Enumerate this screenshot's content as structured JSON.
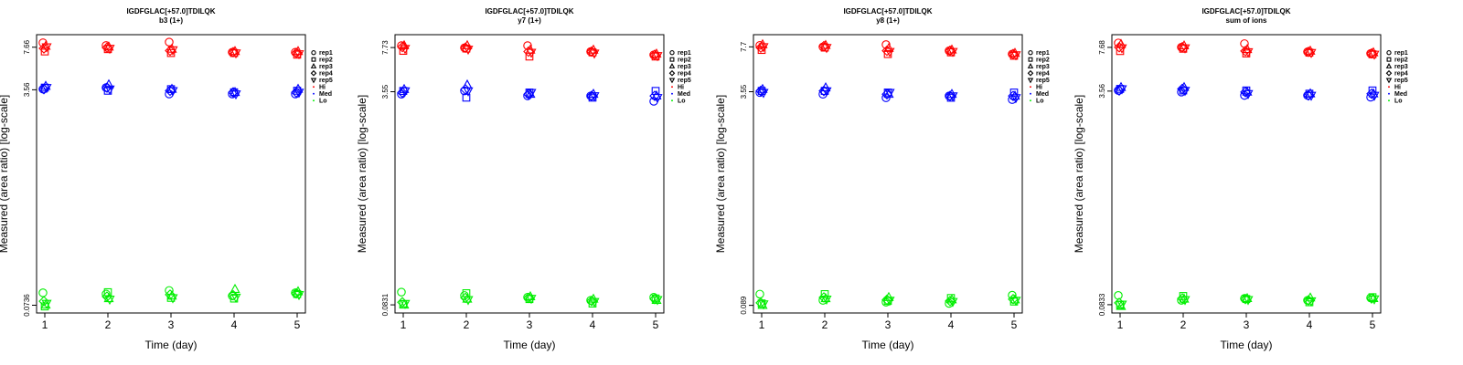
{
  "chart_data": [
    {
      "type": "scatter",
      "title": "IGDFGLAC[+57.0]TDILQK",
      "subtitle": "b3 (1+)",
      "xlabel": "Time (day)",
      "ylabel": "Measured (area ratio) [log-scale]",
      "x_ticks": [
        "1",
        "2",
        "3",
        "4",
        "5"
      ],
      "y_scale": "log",
      "y_ticks": [
        {
          "value": 0.0736,
          "label": "0.0736"
        },
        {
          "value": 3.56,
          "label": "3.56"
        },
        {
          "value": 7.66,
          "label": "7.66"
        }
      ],
      "ylim": [
        0.064,
        9.6
      ],
      "legend": [
        {
          "label": "rep1",
          "marker": "circle"
        },
        {
          "label": "rep2",
          "marker": "square"
        },
        {
          "label": "rep3",
          "marker": "triangle-up"
        },
        {
          "label": "rep4",
          "marker": "diamond"
        },
        {
          "label": "rep5",
          "marker": "triangle-down"
        },
        {
          "label": "Hi",
          "marker": "dot",
          "color": "#ff0000"
        },
        {
          "label": "Med",
          "marker": "dot",
          "color": "#0000ff"
        },
        {
          "label": "Lo",
          "marker": "dot",
          "color": "#00ee00"
        }
      ],
      "legend_position": "right",
      "series": [
        {
          "level": "Hi",
          "color": "#ff0000",
          "x": [
            1,
            2,
            3,
            4,
            5
          ],
          "values": {
            "rep1": [
              8.3,
              7.9,
              8.4,
              7.0,
              7.0
            ],
            "rep2": [
              7.1,
              7.4,
              6.9,
              6.9,
              6.7
            ],
            "rep3": [
              7.8,
              7.7,
              7.4,
              7.1,
              7.1
            ],
            "rep4": [
              7.5,
              7.6,
              7.2,
              7.0,
              6.9
            ],
            "rep5": [
              7.7,
              7.5,
              7.3,
              6.9,
              6.8
            ]
          }
        },
        {
          "level": "Med",
          "color": "#0000ff",
          "x": [
            1,
            2,
            3,
            4,
            5
          ],
          "values": {
            "rep1": [
              3.6,
              3.7,
              3.3,
              3.3,
              3.3
            ],
            "rep2": [
              3.7,
              3.5,
              3.6,
              3.4,
              3.5
            ],
            "rep3": [
              3.8,
              3.9,
              3.6,
              3.4,
              3.6
            ],
            "rep4": [
              3.6,
              3.7,
              3.5,
              3.4,
              3.4
            ],
            "rep5": [
              3.7,
              3.6,
              3.5,
              3.3,
              3.4
            ]
          }
        },
        {
          "level": "Lo",
          "color": "#00ee00",
          "x": [
            1,
            2,
            3,
            4,
            5
          ],
          "values": {
            "rep1": [
              0.092,
              0.09,
              0.096,
              0.087,
              0.092
            ],
            "rep2": [
              0.072,
              0.093,
              0.084,
              0.083,
              0.09
            ],
            "rep3": [
              0.074,
              0.083,
              0.087,
              0.098,
              0.094
            ],
            "rep4": [
              0.079,
              0.086,
              0.089,
              0.088,
              0.091
            ],
            "rep5": [
              0.076,
              0.082,
              0.084,
              0.085,
              0.089
            ]
          }
        }
      ]
    },
    {
      "type": "scatter",
      "title": "IGDFGLAC[+57.0]TDILQK",
      "subtitle": "y7 (1+)",
      "xlabel": "Time (day)",
      "ylabel": "Measured (area ratio) [log-scale]",
      "x_ticks": [
        "1",
        "2",
        "3",
        "4",
        "5"
      ],
      "y_scale": "log",
      "y_ticks": [
        {
          "value": 0.0831,
          "label": "0.0831"
        },
        {
          "value": 3.55,
          "label": "3.55"
        },
        {
          "value": 7.73,
          "label": "7.73"
        }
      ],
      "ylim": [
        0.072,
        9.7
      ],
      "legend": [
        {
          "label": "rep1",
          "marker": "circle"
        },
        {
          "label": "rep2",
          "marker": "square"
        },
        {
          "label": "rep3",
          "marker": "triangle-up"
        },
        {
          "label": "rep4",
          "marker": "diamond"
        },
        {
          "label": "rep5",
          "marker": "triangle-down"
        },
        {
          "label": "Hi",
          "marker": "dot",
          "color": "#ff0000"
        },
        {
          "label": "Med",
          "marker": "dot",
          "color": "#0000ff"
        },
        {
          "label": "Lo",
          "marker": "dot",
          "color": "#00ee00"
        }
      ],
      "legend_position": "right",
      "series": [
        {
          "level": "Hi",
          "color": "#ff0000",
          "x": [
            1,
            2,
            3,
            4,
            5
          ],
          "values": {
            "rep1": [
              8.0,
              7.7,
              8.0,
              7.2,
              6.8
            ],
            "rep2": [
              7.3,
              7.6,
              6.6,
              7.1,
              6.6
            ],
            "rep3": [
              8.0,
              8.0,
              7.4,
              7.4,
              6.9
            ],
            "rep4": [
              7.8,
              7.7,
              7.2,
              7.2,
              6.8
            ],
            "rep5": [
              7.6,
              7.5,
              7.1,
              7.0,
              6.7
            ]
          }
        },
        {
          "level": "Med",
          "color": "#0000ff",
          "x": [
            1,
            2,
            3,
            4,
            5
          ],
          "values": {
            "rep1": [
              3.4,
              3.6,
              3.3,
              3.3,
              3.0
            ],
            "rep2": [
              3.6,
              3.2,
              3.5,
              3.2,
              3.6
            ],
            "rep3": [
              3.7,
              4.0,
              3.4,
              3.4,
              3.3
            ],
            "rep4": [
              3.5,
              3.7,
              3.4,
              3.3,
              3.3
            ],
            "rep5": [
              3.6,
              3.6,
              3.5,
              3.3,
              3.2
            ]
          }
        },
        {
          "level": "Lo",
          "color": "#00ee00",
          "x": [
            1,
            2,
            3,
            4,
            5
          ],
          "values": {
            "rep1": [
              0.104,
              0.098,
              0.095,
              0.09,
              0.095
            ],
            "rep2": [
              0.084,
              0.102,
              0.092,
              0.085,
              0.093
            ],
            "rep3": [
              0.083,
              0.092,
              0.096,
              0.092,
              0.09
            ],
            "rep4": [
              0.087,
              0.094,
              0.094,
              0.089,
              0.092
            ],
            "rep5": [
              0.085,
              0.091,
              0.093,
              0.088,
              0.091
            ]
          }
        }
      ]
    },
    {
      "type": "scatter",
      "title": "IGDFGLAC[+57.0]TDILQK",
      "subtitle": "y8 (1+)",
      "xlabel": "Time (day)",
      "ylabel": "Measured (area ratio) [log-scale]",
      "x_ticks": [
        "1",
        "2",
        "3",
        "4",
        "5"
      ],
      "y_scale": "log",
      "y_ticks": [
        {
          "value": 0.089,
          "label": "0.089"
        },
        {
          "value": 3.55,
          "label": "3.55"
        },
        {
          "value": 7.7,
          "label": "7.7"
        }
      ],
      "ylim": [
        0.078,
        9.5
      ],
      "legend": [
        {
          "label": "rep1",
          "marker": "circle"
        },
        {
          "label": "rep2",
          "marker": "square"
        },
        {
          "label": "rep3",
          "marker": "triangle-up"
        },
        {
          "label": "rep4",
          "marker": "diamond"
        },
        {
          "label": "rep5",
          "marker": "triangle-down"
        },
        {
          "label": "Hi",
          "marker": "dot",
          "color": "#ff0000"
        },
        {
          "label": "Med",
          "marker": "dot",
          "color": "#0000ff"
        },
        {
          "label": "Lo",
          "marker": "dot",
          "color": "#00ee00"
        }
      ],
      "legend_position": "right",
      "series": [
        {
          "level": "Hi",
          "color": "#ff0000",
          "x": [
            1,
            2,
            3,
            4,
            5
          ],
          "values": {
            "rep1": [
              7.9,
              7.7,
              8.0,
              7.2,
              6.8
            ],
            "rep2": [
              7.3,
              7.6,
              6.8,
              7.0,
              6.6
            ],
            "rep3": [
              8.0,
              7.9,
              7.5,
              7.3,
              6.9
            ],
            "rep4": [
              7.6,
              7.8,
              7.2,
              7.2,
              6.8
            ],
            "rep5": [
              7.7,
              7.6,
              7.1,
              7.1,
              6.7
            ]
          }
        },
        {
          "level": "Med",
          "color": "#0000ff",
          "x": [
            1,
            2,
            3,
            4,
            5
          ],
          "values": {
            "rep1": [
              3.5,
              3.4,
              3.2,
              3.3,
              3.1
            ],
            "rep2": [
              3.6,
              3.6,
              3.5,
              3.2,
              3.5
            ],
            "rep3": [
              3.7,
              3.8,
              3.4,
              3.4,
              3.3
            ],
            "rep4": [
              3.6,
              3.6,
              3.4,
              3.3,
              3.3
            ],
            "rep5": [
              3.5,
              3.6,
              3.5,
              3.3,
              3.2
            ]
          }
        },
        {
          "level": "Lo",
          "color": "#00ee00",
          "x": [
            1,
            2,
            3,
            4,
            5
          ],
          "values": {
            "rep1": [
              0.108,
              0.097,
              0.094,
              0.092,
              0.106
            ],
            "rep2": [
              0.092,
              0.108,
              0.096,
              0.101,
              0.095
            ],
            "rep3": [
              0.089,
              0.1,
              0.102,
              0.098,
              0.098
            ],
            "rep4": [
              0.093,
              0.102,
              0.098,
              0.096,
              0.099
            ],
            "rep5": [
              0.091,
              0.099,
              0.097,
              0.095,
              0.097
            ]
          }
        }
      ]
    },
    {
      "type": "scatter",
      "title": "IGDFGLAC[+57.0]TDILQK",
      "subtitle": "sum of ions",
      "xlabel": "Time (day)",
      "ylabel": "Measured (area ratio) [log-scale]",
      "x_ticks": [
        "1",
        "2",
        "3",
        "4",
        "5"
      ],
      "y_scale": "log",
      "y_ticks": [
        {
          "value": 0.0833,
          "label": "0.0833"
        },
        {
          "value": 3.56,
          "label": "3.56"
        },
        {
          "value": 7.68,
          "label": "7.68"
        }
      ],
      "ylim": [
        0.072,
        9.6
      ],
      "legend": [
        {
          "label": "rep1",
          "marker": "circle"
        },
        {
          "label": "rep2",
          "marker": "square"
        },
        {
          "label": "rep3",
          "marker": "triangle-up"
        },
        {
          "label": "rep4",
          "marker": "diamond"
        },
        {
          "label": "rep5",
          "marker": "triangle-down"
        },
        {
          "label": "Hi",
          "marker": "dot",
          "color": "#ff0000"
        },
        {
          "label": "Med",
          "marker": "dot",
          "color": "#0000ff"
        },
        {
          "label": "Lo",
          "marker": "dot",
          "color": "#00ee00"
        }
      ],
      "legend_position": "right",
      "series": [
        {
          "level": "Hi",
          "color": "#ff0000",
          "x": [
            1,
            2,
            3,
            4,
            5
          ],
          "values": {
            "rep1": [
              8.3,
              7.7,
              8.2,
              7.1,
              6.9
            ],
            "rep2": [
              7.2,
              7.5,
              6.9,
              7.0,
              6.8
            ],
            "rep3": [
              8.1,
              7.9,
              7.4,
              7.2,
              7.0
            ],
            "rep4": [
              7.7,
              7.7,
              7.2,
              7.1,
              6.9
            ],
            "rep5": [
              7.6,
              7.6,
              7.1,
              7.0,
              6.8
            ]
          }
        },
        {
          "level": "Med",
          "color": "#0000ff",
          "x": [
            1,
            2,
            3,
            4,
            5
          ],
          "values": {
            "rep1": [
              3.6,
              3.5,
              3.3,
              3.3,
              3.2
            ],
            "rep2": [
              3.7,
              3.6,
              3.6,
              3.4,
              3.6
            ],
            "rep3": [
              3.8,
              3.8,
              3.5,
              3.4,
              3.4
            ],
            "rep4": [
              3.6,
              3.7,
              3.5,
              3.3,
              3.4
            ],
            "rep5": [
              3.7,
              3.6,
              3.4,
              3.3,
              3.3
            ]
          }
        },
        {
          "level": "Lo",
          "color": "#00ee00",
          "x": [
            1,
            2,
            3,
            4,
            5
          ],
          "values": {
            "rep1": [
              0.098,
              0.09,
              0.093,
              0.09,
              0.094
            ],
            "rep2": [
              0.083,
              0.097,
              0.092,
              0.087,
              0.095
            ],
            "rep3": [
              0.081,
              0.092,
              0.093,
              0.094,
              0.093
            ],
            "rep4": [
              0.086,
              0.093,
              0.092,
              0.09,
              0.093
            ],
            "rep5": [
              0.084,
              0.091,
              0.091,
              0.089,
              0.092
            ]
          }
        }
      ]
    }
  ]
}
